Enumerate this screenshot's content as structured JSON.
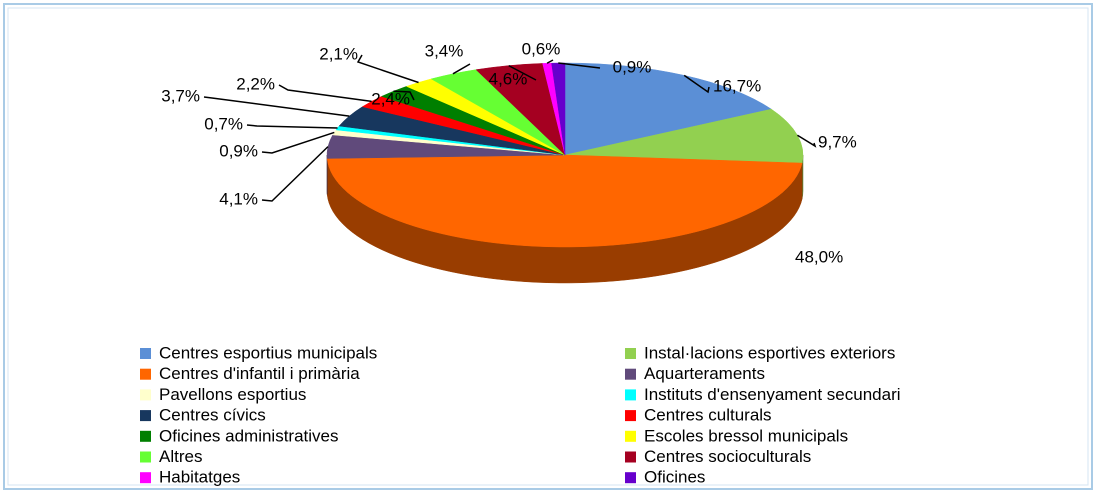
{
  "chart_data": {
    "type": "pie3d",
    "categories": [
      "Centres esportius municipals",
      "Instal·lacions esportives exteriors",
      "Centres d'infantil i primària",
      "Aquarteraments",
      "Pavellons esportius",
      "Instituts d'ensenyament secundari",
      "Centres cívics",
      "Centres culturals",
      "Oficines administratives",
      "Escoles bressol municipals",
      "Altres",
      "Centres socioculturals",
      "Habitatges",
      "Oficines"
    ],
    "values": [
      16.7,
      9.7,
      48.0,
      4.1,
      0.9,
      0.7,
      3.7,
      2.2,
      2.4,
      2.1,
      3.4,
      4.6,
      0.6,
      0.9
    ],
    "value_labels": [
      "16,7%",
      "9,7%",
      "48,0%",
      "4,1%",
      "0,9%",
      "0,7%",
      "3,7%",
      "2,2%",
      "2,4%",
      "2,1%",
      "3,4%",
      "4,6%",
      "0,6%",
      "0,9%"
    ],
    "colors": [
      "#5b8fd6",
      "#92d050",
      "#ff6600",
      "#604a7b",
      "#ffffcc",
      "#00ffff",
      "#17375e",
      "#ff0000",
      "#007f00",
      "#ffff00",
      "#66ff33",
      "#a50021",
      "#ff00ff",
      "#6600cc"
    ],
    "legend": "bottom"
  }
}
